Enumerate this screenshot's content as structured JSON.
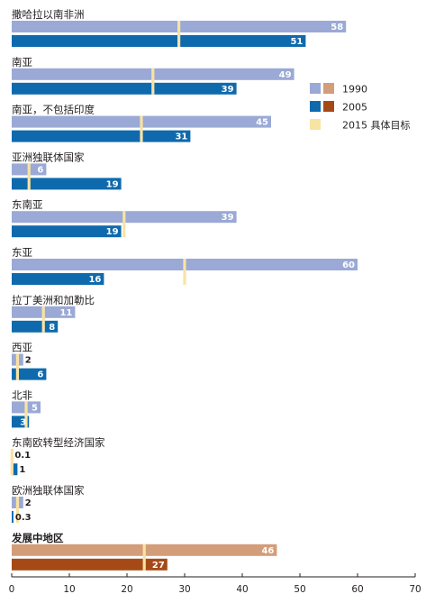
{
  "chart_data": {
    "type": "bar",
    "orientation": "horizontal",
    "xlim": [
      0,
      70
    ],
    "xticks": [
      "0",
      "10",
      "20",
      "30",
      "40",
      "50",
      "60",
      "70"
    ],
    "grid": false,
    "legend_position": "right",
    "legend": [
      {
        "key": "1990",
        "label": "1990",
        "colors": [
          "#9aa9d5",
          "#d39d79"
        ]
      },
      {
        "key": "2005",
        "label": "2005",
        "colors": [
          "#0f6aad",
          "#a54a17"
        ]
      },
      {
        "key": "target",
        "label": "2015 具体目标",
        "colors": [
          "#f9e3a3"
        ]
      }
    ],
    "series": [
      {
        "name": "1990",
        "values": [
          58,
          49,
          45,
          6,
          39,
          60,
          11,
          2,
          5,
          0.1,
          2,
          46
        ]
      },
      {
        "name": "2005",
        "values": [
          51,
          39,
          31,
          19,
          19,
          16,
          8,
          6,
          3,
          1,
          0.3,
          27
        ]
      },
      {
        "name": "2015 具体目标",
        "values": [
          29,
          24.5,
          22.5,
          3,
          19.5,
          30,
          5.5,
          1,
          2.5,
          0.05,
          1,
          23
        ]
      }
    ],
    "categories": [
      {
        "label": "撒哈拉以南非洲",
        "v1990": "58",
        "v2005": "51",
        "highlight": false
      },
      {
        "label": "南亚",
        "v1990": "49",
        "v2005": "39",
        "highlight": false
      },
      {
        "label": "南亚，不包括印度",
        "v1990": "45",
        "v2005": "31",
        "highlight": false
      },
      {
        "label": "亚洲独联体国家",
        "v1990": "6",
        "v2005": "19",
        "highlight": false
      },
      {
        "label": "东南亚",
        "v1990": "39",
        "v2005": "19",
        "highlight": false
      },
      {
        "label": "东亚",
        "v1990": "60",
        "v2005": "16",
        "highlight": false
      },
      {
        "label": "拉丁美洲和加勒比",
        "v1990": "11",
        "v2005": "8",
        "highlight": false
      },
      {
        "label": "西亚",
        "v1990": "2",
        "v2005": "6",
        "highlight": false
      },
      {
        "label": "北非",
        "v1990": "5",
        "v2005": "3",
        "highlight": false
      },
      {
        "label": "东南欧转型经济国家",
        "v1990": "0.1",
        "v2005": "1",
        "highlight": false
      },
      {
        "label": "欧洲独联体国家",
        "v1990": "2",
        "v2005": "0.3",
        "highlight": false
      },
      {
        "label": "发展中地区",
        "v1990": "46",
        "v2005": "27",
        "highlight": true
      }
    ]
  }
}
